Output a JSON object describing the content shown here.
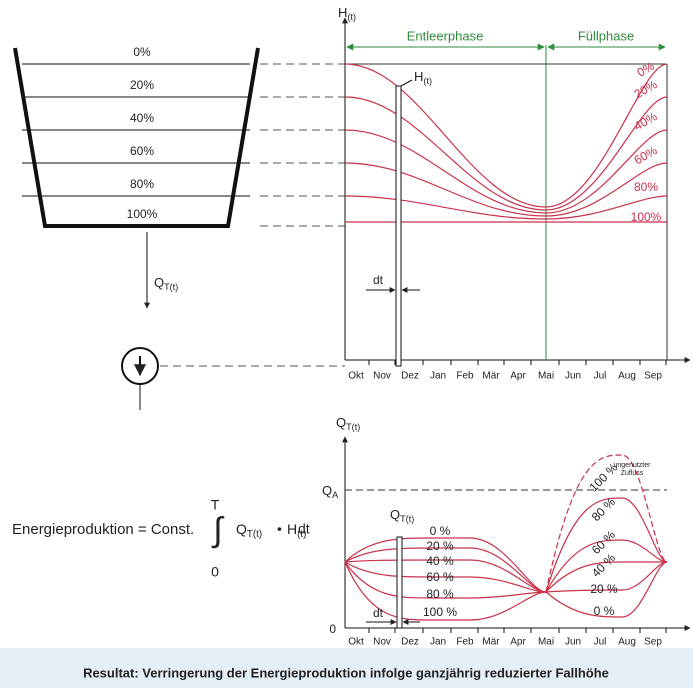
{
  "reservoir": {
    "levels": [
      "0%",
      "20%",
      "40%",
      "60%",
      "80%",
      "100%"
    ],
    "outflow": {
      "symbol": "Q",
      "subscript": "T(t)"
    }
  },
  "level_chart": {
    "axis": {
      "symbol": "H",
      "subscript": "(t)"
    },
    "phases": [
      "Entleerphase",
      "Füllphase"
    ],
    "marker": {
      "symbol": "H",
      "subscript": "(t)"
    },
    "step": "dt",
    "months": [
      "Okt",
      "Nov",
      "Dez",
      "Jan",
      "Feb",
      "Mär",
      "Apr",
      "Mai",
      "Jun",
      "Jul",
      "Aug",
      "Sep"
    ],
    "curve_labels": [
      "0%",
      "20%",
      "40%",
      "60%",
      "80%",
      "100%"
    ]
  },
  "flow_chart": {
    "axis": {
      "symbol": "Q",
      "subscript": "T(t)"
    },
    "capacity": {
      "symbol": "Q",
      "subscript": "A"
    },
    "origin": "0",
    "marker": {
      "symbol": "Q",
      "subscript": "T(t)"
    },
    "step": "dt",
    "months": [
      "Okt",
      "Nov",
      "Dez",
      "Jan",
      "Feb",
      "Mär",
      "Apr",
      "Mai",
      "Jun",
      "Jul",
      "Aug",
      "Sep"
    ],
    "left_labels": [
      "0 %",
      "20 %",
      "40 %",
      "60 %",
      "80 %",
      "100 %"
    ],
    "right_labels": [
      "100 %",
      "80 %",
      "60 %",
      "40 %",
      "20 %",
      "0 %"
    ],
    "spill_note": [
      "ungenutzter",
      "Zufluss"
    ]
  },
  "formula": {
    "lhs": "Energieproduktion = Const.",
    "integral": "∫",
    "upper": "T",
    "lower": "0",
    "q": {
      "symbol": "Q",
      "subscript": "T(t)"
    },
    "dot": "•",
    "h": {
      "symbol": "H",
      "subscript": "(t)"
    },
    "tail": "dt"
  },
  "footer": "Resultat: Verringerung der Energieproduktion infolge ganzjährig reduzierter Fallhöhe"
}
